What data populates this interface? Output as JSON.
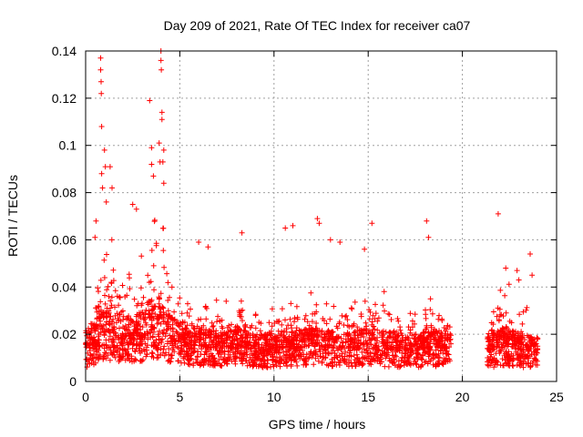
{
  "chart_data": {
    "type": "scatter",
    "title": "Day 209 of 2021, Rate Of TEC Index for receiver ca07",
    "xlabel": "GPS time / hours",
    "ylabel": "ROTI / TECUs",
    "xlim": [
      0,
      25
    ],
    "ylim": [
      0,
      0.14
    ],
    "xticks": [
      0,
      5,
      10,
      15,
      20,
      25
    ],
    "xtick_labels": [
      "0",
      "5",
      "10",
      "15",
      "20",
      "25"
    ],
    "yticks": [
      0,
      0.02,
      0.04,
      0.06,
      0.08,
      0.1,
      0.12,
      0.14
    ],
    "ytick_labels": [
      "0",
      "0.02",
      "0.04",
      "0.06",
      "0.08",
      "0.1",
      "0.12",
      "0.14"
    ],
    "grid": true,
    "marker": "+",
    "marker_color": "#ff0000",
    "data_gap_hours": [
      19.4,
      21.3
    ],
    "series": [
      {
        "name": "ROTI",
        "envelope": {
          "x": [
            0,
            0.5,
            0.8,
            1.0,
            1.2,
            1.5,
            2.0,
            2.5,
            2.8,
            3.2,
            3.5,
            3.8,
            4.0,
            4.2,
            4.5,
            5.0,
            5.5,
            6.0,
            6.5,
            7.0,
            7.5,
            8.0,
            8.5,
            9.0,
            9.5,
            10.0,
            10.5,
            11.0,
            11.5,
            12.0,
            12.5,
            13.0,
            13.5,
            14.0,
            14.5,
            15.0,
            15.5,
            16.0,
            16.5,
            17.0,
            17.5,
            18.0,
            18.5,
            19.0,
            19.4,
            21.3,
            21.8,
            22.3,
            22.8,
            23.3,
            23.8,
            24.0
          ],
          "median": [
            0.013,
            0.016,
            0.02,
            0.021,
            0.02,
            0.019,
            0.018,
            0.017,
            0.019,
            0.019,
            0.02,
            0.022,
            0.023,
            0.02,
            0.018,
            0.016,
            0.014,
            0.015,
            0.014,
            0.014,
            0.014,
            0.015,
            0.014,
            0.013,
            0.013,
            0.013,
            0.014,
            0.014,
            0.014,
            0.015,
            0.015,
            0.014,
            0.014,
            0.014,
            0.014,
            0.015,
            0.014,
            0.014,
            0.013,
            0.013,
            0.013,
            0.014,
            0.014,
            0.014,
            0.014,
            0.012,
            0.014,
            0.015,
            0.014,
            0.013,
            0.012,
            0.012
          ],
          "upper": [
            0.022,
            0.03,
            0.05,
            0.055,
            0.05,
            0.045,
            0.04,
            0.04,
            0.045,
            0.045,
            0.05,
            0.06,
            0.062,
            0.05,
            0.04,
            0.032,
            0.028,
            0.03,
            0.028,
            0.028,
            0.028,
            0.03,
            0.028,
            0.026,
            0.026,
            0.026,
            0.028,
            0.028,
            0.028,
            0.032,
            0.03,
            0.03,
            0.03,
            0.028,
            0.028,
            0.032,
            0.03,
            0.03,
            0.028,
            0.028,
            0.026,
            0.03,
            0.03,
            0.03,
            0.028,
            0.025,
            0.032,
            0.035,
            0.03,
            0.028,
            0.024,
            0.024
          ]
        },
        "outliers": {
          "x": [
            0.5,
            0.55,
            0.8,
            0.8,
            0.82,
            0.83,
            0.85,
            0.85,
            0.9,
            1.0,
            1.05,
            1.1,
            1.3,
            1.4,
            2.5,
            2.7,
            3.4,
            3.5,
            3.5,
            3.6,
            3.9,
            3.95,
            4.0,
            4.0,
            4.02,
            4.05,
            4.05,
            4.1,
            4.15,
            4.15,
            6.0,
            6.5,
            8.3,
            10.6,
            11.0,
            12.3,
            12.4,
            13.0,
            13.5,
            14.8,
            15.2,
            18.1,
            18.2,
            21.9,
            22.3,
            22.9,
            23.0,
            23.6,
            23.7
          ],
          "y": [
            0.061,
            0.068,
            0.137,
            0.132,
            0.127,
            0.122,
            0.108,
            0.088,
            0.082,
            0.098,
            0.091,
            0.076,
            0.091,
            0.082,
            0.075,
            0.073,
            0.119,
            0.099,
            0.092,
            0.087,
            0.101,
            0.093,
            0.14,
            0.136,
            0.132,
            0.114,
            0.111,
            0.093,
            0.098,
            0.084,
            0.059,
            0.057,
            0.063,
            0.065,
            0.066,
            0.069,
            0.067,
            0.06,
            0.059,
            0.056,
            0.067,
            0.068,
            0.061,
            0.071,
            0.048,
            0.047,
            0.043,
            0.054,
            0.045
          ]
        }
      }
    ]
  }
}
